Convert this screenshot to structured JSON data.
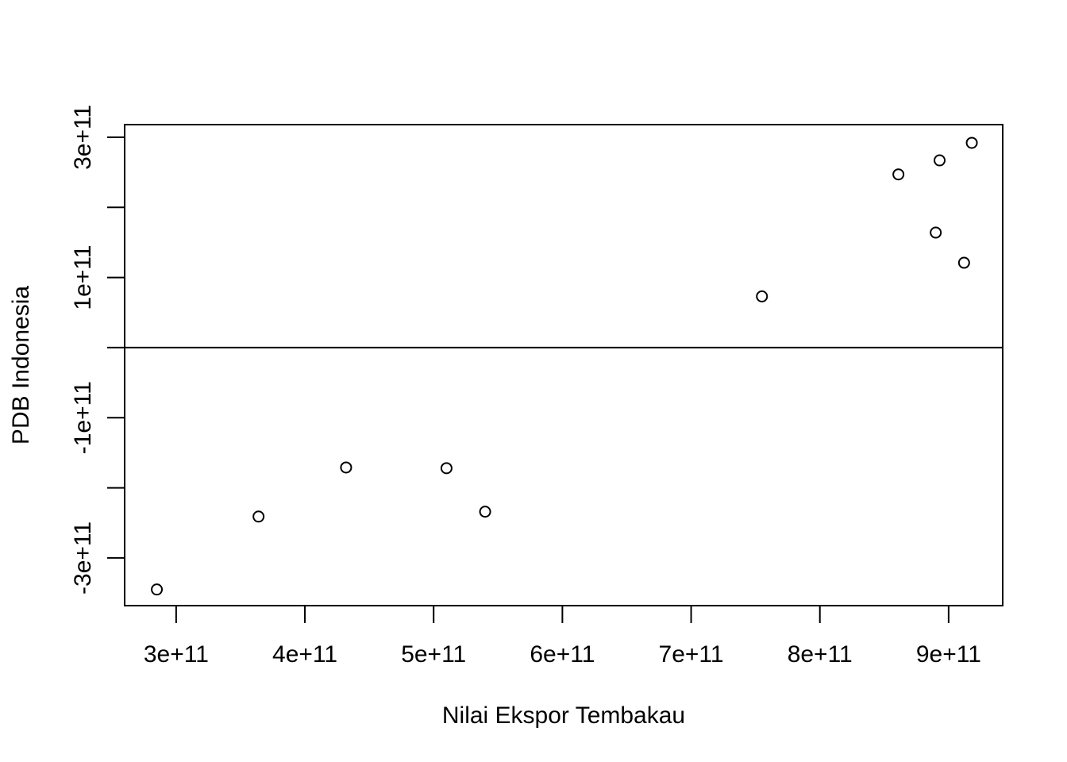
{
  "chart_data": {
    "type": "scatter",
    "title": "",
    "xlabel": "Nilai Ekspor Tembakau",
    "ylabel": "PDB Indonesia",
    "xlim": [
      260000000000,
      942000000000
    ],
    "ylim": [
      -368000000000,
      318000000000
    ],
    "x_ticks": [
      300000000000,
      400000000000,
      500000000000,
      600000000000,
      700000000000,
      800000000000,
      900000000000
    ],
    "x_tick_labels": [
      "3e+11",
      "4e+11",
      "5e+11",
      "6e+11",
      "7e+11",
      "8e+11",
      "9e+11"
    ],
    "y_ticks": [
      -300000000000,
      -200000000000,
      -100000000000,
      0,
      100000000000,
      200000000000,
      300000000000
    ],
    "y_tick_labels": [
      "-3e+11",
      "",
      "-1e+11",
      "",
      "1e+11",
      "",
      "3e+11"
    ],
    "reference_line_y": 0,
    "marker": "open-circle",
    "grid": false,
    "points": [
      {
        "x": 285000000000,
        "y": -345000000000
      },
      {
        "x": 364000000000,
        "y": -241000000000
      },
      {
        "x": 432000000000,
        "y": -171000000000
      },
      {
        "x": 510000000000,
        "y": -172000000000
      },
      {
        "x": 540000000000,
        "y": -234000000000
      },
      {
        "x": 755000000000,
        "y": 73000000000
      },
      {
        "x": 861000000000,
        "y": 247000000000
      },
      {
        "x": 890000000000,
        "y": 164000000000
      },
      {
        "x": 893000000000,
        "y": 267000000000
      },
      {
        "x": 912000000000,
        "y": 121000000000
      },
      {
        "x": 918000000000,
        "y": 292000000000
      }
    ]
  }
}
